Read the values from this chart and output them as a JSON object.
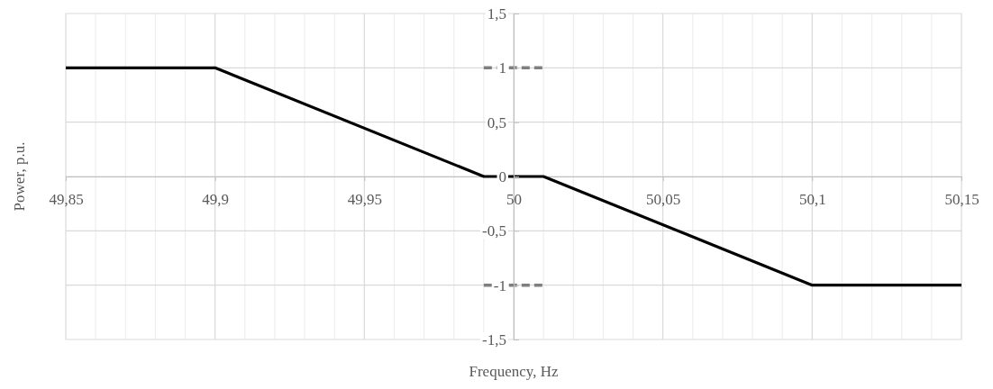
{
  "chart_data": {
    "type": "line",
    "xlabel": "Frequency, Hz",
    "ylabel": "Power, p.u.",
    "xlim": [
      49.85,
      50.15
    ],
    "ylim": [
      -1.5,
      1.5
    ],
    "xticks": [
      {
        "value": 49.85,
        "label": "49,85"
      },
      {
        "value": 49.86,
        "label": null
      },
      {
        "value": 49.87,
        "label": null
      },
      {
        "value": 49.88,
        "label": null
      },
      {
        "value": 49.89,
        "label": null
      },
      {
        "value": 49.9,
        "label": "49,9"
      },
      {
        "value": 49.91,
        "label": null
      },
      {
        "value": 49.92,
        "label": null
      },
      {
        "value": 49.93,
        "label": null
      },
      {
        "value": 49.94,
        "label": null
      },
      {
        "value": 49.95,
        "label": "49,95"
      },
      {
        "value": 49.96,
        "label": null
      },
      {
        "value": 49.97,
        "label": null
      },
      {
        "value": 49.98,
        "label": null
      },
      {
        "value": 49.99,
        "label": null
      },
      {
        "value": 50,
        "label": "50"
      },
      {
        "value": 50.01,
        "label": null
      },
      {
        "value": 50.02,
        "label": null
      },
      {
        "value": 50.03,
        "label": null
      },
      {
        "value": 50.04,
        "label": null
      },
      {
        "value": 50.05,
        "label": "50,05"
      },
      {
        "value": 50.06,
        "label": null
      },
      {
        "value": 50.07,
        "label": null
      },
      {
        "value": 50.08,
        "label": null
      },
      {
        "value": 50.09,
        "label": null
      },
      {
        "value": 50.1,
        "label": "50,1"
      },
      {
        "value": 50.11,
        "label": null
      },
      {
        "value": 50.12,
        "label": null
      },
      {
        "value": 50.13,
        "label": null
      },
      {
        "value": 50.14,
        "label": null
      },
      {
        "value": 50.15,
        "label": "50,15"
      }
    ],
    "yticks": [
      {
        "value": -1.5,
        "label": "-1,5"
      },
      {
        "value": -1,
        "label": "-1"
      },
      {
        "value": -0.5,
        "label": "-0,5"
      },
      0,
      {
        "value": 0.5,
        "label": "0,5"
      },
      1,
      {
        "value": 1.5,
        "label": "1,5"
      }
    ],
    "grid": true,
    "marker": "none",
    "series": [
      {
        "color": "#000000",
        "line_style": "solid",
        "x": [
          49.85,
          49.9,
          49.99,
          50.01,
          50.1,
          50.15
        ],
        "values": [
          1,
          1,
          0,
          0,
          -1,
          -1
        ]
      },
      {
        "color": "#7f7f7f",
        "line_style": "dashed",
        "x": [
          49.99,
          50.01
        ],
        "values": [
          1,
          1
        ]
      },
      {
        "color": "#7f7f7f",
        "line_style": "dashed",
        "x": [
          49.99,
          50.01
        ],
        "values": [
          -1,
          -1
        ]
      }
    ]
  }
}
